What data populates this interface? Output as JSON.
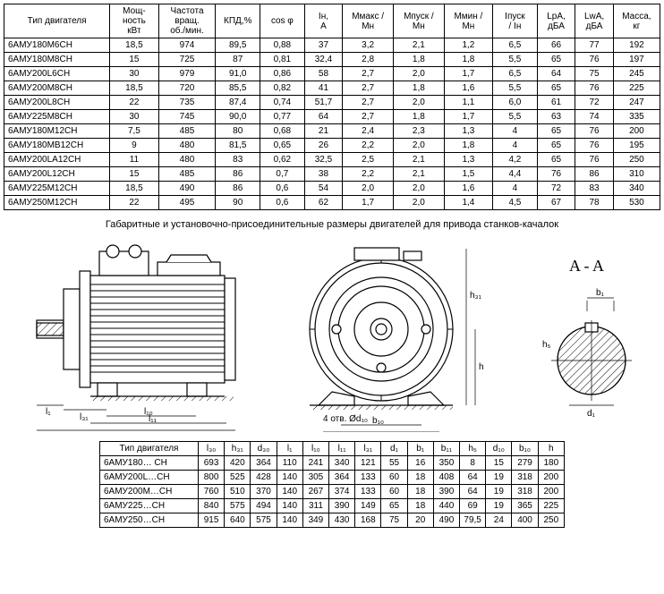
{
  "table1": {
    "headers": [
      "Тип двигателя",
      "Мощ-\nность\nкВт",
      "Частота\nвращ.\nоб./мин.",
      "КПД,%",
      "cos φ",
      "Iн,\nА",
      "Ммакс /\nМн",
      "Мпуск /\nМн",
      "Ммин /\nМн",
      "Iпуск\n/ Iн",
      "LpА,\nдБА",
      "LwА,\nдБА",
      "Масса,\nкг"
    ],
    "rows": [
      [
        "6АМУ180М6СН",
        "18,5",
        "974",
        "89,5",
        "0,88",
        "37",
        "3,2",
        "2,1",
        "1,2",
        "6,5",
        "66",
        "77",
        "192"
      ],
      [
        "6АМУ180М8СН",
        "15",
        "725",
        "87",
        "0,81",
        "32,4",
        "2,8",
        "1,8",
        "1,8",
        "5,5",
        "65",
        "76",
        "197"
      ],
      [
        "6АМУ200L6СН",
        "30",
        "979",
        "91,0",
        "0,86",
        "58",
        "2,7",
        "2,0",
        "1,7",
        "6,5",
        "64",
        "75",
        "245"
      ],
      [
        "6АМУ200М8СН",
        "18,5",
        "720",
        "85,5",
        "0,82",
        "41",
        "2,7",
        "1,8",
        "1,6",
        "5,5",
        "65",
        "76",
        "225"
      ],
      [
        "6АМУ200L8СН",
        "22",
        "735",
        "87,4",
        "0,74",
        "51,7",
        "2,7",
        "2,0",
        "1,1",
        "6,0",
        "61",
        "72",
        "247"
      ],
      [
        "6АМУ225М8СН",
        "30",
        "745",
        "90,0",
        "0,77",
        "64",
        "2,7",
        "1,8",
        "1,7",
        "5,5",
        "63",
        "74",
        "335"
      ],
      [
        "6АМУ180М12СН",
        "7,5",
        "485",
        "80",
        "0,68",
        "21",
        "2,4",
        "2,3",
        "1,3",
        "4",
        "65",
        "76",
        "200"
      ],
      [
        "6АМУ180МВ12СН",
        "9",
        "480",
        "81,5",
        "0,65",
        "26",
        "2,2",
        "2,0",
        "1,8",
        "4",
        "65",
        "76",
        "195"
      ],
      [
        "6АМУ200LА12СН",
        "11",
        "480",
        "83",
        "0,62",
        "32,5",
        "2,5",
        "2,1",
        "1,3",
        "4,2",
        "65",
        "76",
        "250"
      ],
      [
        "6АМУ200L12СН",
        "15",
        "485",
        "86",
        "0,7",
        "38",
        "2,2",
        "2,1",
        "1,5",
        "4,4",
        "76",
        "86",
        "310"
      ],
      [
        "6АМУ225М12СН",
        "18,5",
        "490",
        "86",
        "0,6",
        "54",
        "2,0",
        "2,0",
        "1,6",
        "4",
        "72",
        "83",
        "340"
      ],
      [
        "6АМУ250М12СН",
        "22",
        "495",
        "90",
        "0,6",
        "62",
        "1,7",
        "2,0",
        "1,4",
        "4,5",
        "67",
        "78",
        "530"
      ]
    ]
  },
  "caption": "Габаритные и установочно-присоединительные размеры двигателей  для привода станков-качалок",
  "section_label": "A - A",
  "dim_labels": [
    "l₁",
    "l₃₁",
    "l₁₀",
    "l₁₁",
    "l₃₀",
    "4",
    "отв.",
    "Ød₁₀",
    "b₁₀",
    "b₁₁",
    "d₃₀",
    "h₃₁",
    "h",
    "b₁",
    "h₅",
    "d₁"
  ],
  "table2": {
    "headers": [
      "Тип двигателя",
      "l₃₀",
      "h₃₁",
      "d₃₀",
      "l₁",
      "l₁₀",
      "l₁₁",
      "l₃₁",
      "d₁",
      "b₁",
      "b₁₁",
      "h₅",
      "d₁₀",
      "b₁₀",
      "h"
    ],
    "rows": [
      [
        "6АМУ180… СН",
        "693",
        "420",
        "364",
        "110",
        "241",
        "340",
        "121",
        "55",
        "16",
        "350",
        "8",
        "15",
        "279",
        "180"
      ],
      [
        "6АМУ200L…СН",
        "800",
        "525",
        "428",
        "140",
        "305",
        "364",
        "133",
        "60",
        "18",
        "408",
        "64",
        "19",
        "318",
        "200"
      ],
      [
        "6АМУ200М…СН",
        "760",
        "510",
        "370",
        "140",
        "267",
        "374",
        "133",
        "60",
        "18",
        "390",
        "64",
        "19",
        "318",
        "200"
      ],
      [
        "6АМУ225…СН",
        "840",
        "575",
        "494",
        "140",
        "311",
        "390",
        "149",
        "65",
        "18",
        "440",
        "69",
        "19",
        "365",
        "225"
      ],
      [
        "6АМУ250…СН",
        "915",
        "640",
        "575",
        "140",
        "349",
        "430",
        "168",
        "75",
        "20",
        "490",
        "79,5",
        "24",
        "400",
        "250"
      ]
    ]
  },
  "svg": {
    "stroke": "#000",
    "fill": "#fff",
    "hatch": "#000"
  }
}
